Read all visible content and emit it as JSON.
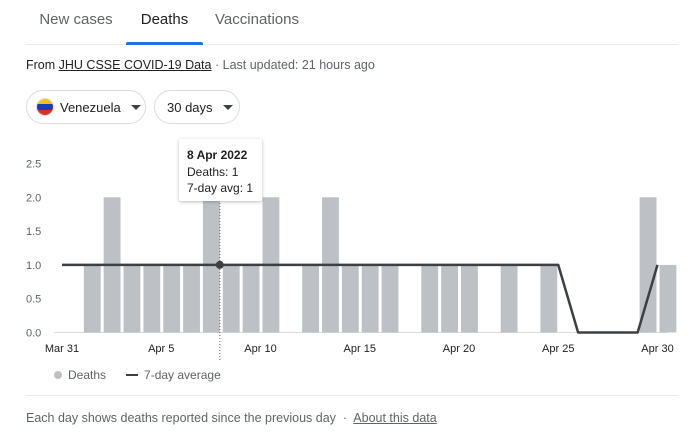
{
  "tabs": [
    {
      "label": "New cases",
      "active": false
    },
    {
      "label": "Deaths",
      "active": true
    },
    {
      "label": "Vaccinations",
      "active": false
    }
  ],
  "source": {
    "prefix": "From",
    "link": "JHU CSSE COVID-19 Data",
    "separator": "·",
    "updated": "Last updated: 21 hours ago"
  },
  "filters": {
    "country": "Venezuela",
    "range": "30 days"
  },
  "tooltip": {
    "date": "8 Apr 2022",
    "deaths": "Deaths: 1",
    "avg": "7-day avg: 1"
  },
  "legend": {
    "bars": "Deaths",
    "line": "7-day average"
  },
  "footer": {
    "text": "Each day shows deaths reported since the previous day",
    "separator": "·",
    "link": "About this data"
  },
  "colors": {
    "bar": "#bdc1c6",
    "line": "#3c4043",
    "accent": "#1a73e8"
  },
  "chart_data": {
    "type": "bar",
    "x": [
      "Mar 31",
      "Apr 1",
      "Apr 2",
      "Apr 3",
      "Apr 4",
      "Apr 5",
      "Apr 6",
      "Apr 7",
      "Apr 8",
      "Apr 9",
      "Apr 10",
      "Apr 11",
      "Apr 12",
      "Apr 13",
      "Apr 14",
      "Apr 15",
      "Apr 16",
      "Apr 17",
      "Apr 18",
      "Apr 19",
      "Apr 20",
      "Apr 21",
      "Apr 22",
      "Apr 23",
      "Apr 24",
      "Apr 25",
      "Apr 26",
      "Apr 27",
      "Apr 28",
      "Apr 29",
      "Apr 30"
    ],
    "x_tick_labels": [
      "Mar 31",
      "Apr 5",
      "Apr 10",
      "Apr 15",
      "Apr 20",
      "Apr 25",
      "Apr 30"
    ],
    "x_tick_indices": [
      0,
      5,
      10,
      15,
      20,
      25,
      30
    ],
    "series": [
      {
        "name": "Deaths",
        "type": "bar",
        "values": [
          0,
          1,
          2,
          1,
          1,
          1,
          1,
          2,
          1,
          1,
          2,
          0,
          1,
          2,
          1,
          1,
          1,
          0,
          1,
          1,
          1,
          0,
          1,
          0,
          1,
          0,
          0,
          0,
          0,
          2,
          1
        ]
      },
      {
        "name": "7-day average",
        "type": "line",
        "values": [
          1,
          1,
          1,
          1,
          1,
          1,
          1,
          1,
          1,
          1,
          1,
          1,
          1,
          1,
          1,
          1,
          1,
          1,
          1,
          1,
          1,
          1,
          1,
          1,
          1,
          1,
          0,
          0,
          0,
          0,
          1
        ]
      }
    ],
    "y_ticks": [
      "0.0",
      "0.5",
      "1.0",
      "1.5",
      "2.0",
      "2.5"
    ],
    "ylim": [
      0,
      2.5
    ],
    "highlight_index": 8,
    "grid": false,
    "legend_position": "bottom-left"
  }
}
